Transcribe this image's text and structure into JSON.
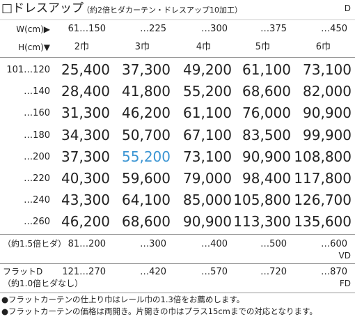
{
  "header": {
    "title": "□ドレスアップ",
    "subtitle": "（約2倍ヒダカーテン・ドレスアップ10加工）",
    "code": "D"
  },
  "table": {
    "width_label": "W(cm)▶",
    "widths": [
      "61…150",
      "…225",
      "…300",
      "…375",
      "…450"
    ],
    "height_label": "H(cm)▼",
    "panels": [
      "2巾",
      "3巾",
      "4巾",
      "5巾",
      "6巾"
    ],
    "rows": [
      {
        "height": "101…120",
        "prices": [
          "25,400",
          "37,300",
          "49,200",
          "61,100",
          "73,100"
        ]
      },
      {
        "height": "…140",
        "prices": [
          "28,400",
          "41,800",
          "55,200",
          "68,600",
          "82,000"
        ]
      },
      {
        "height": "…160",
        "prices": [
          "31,300",
          "46,200",
          "61,100",
          "76,000",
          "90,900"
        ]
      },
      {
        "height": "…180",
        "prices": [
          "34,300",
          "50,700",
          "67,100",
          "83,500",
          "99,900"
        ]
      },
      {
        "height": "…200",
        "prices": [
          "37,300",
          {
            "text": "55,200",
            "color": "#3b95d3"
          },
          "73,100",
          "90,900",
          "108,800"
        ]
      },
      {
        "height": "…220",
        "prices": [
          "40,300",
          "59,600",
          "79,000",
          "98,400",
          "117,800"
        ]
      },
      {
        "height": "…240",
        "prices": [
          "43,300",
          "64,100",
          "85,000",
          "105,800",
          "126,700"
        ]
      },
      {
        "height": "…260",
        "prices": [
          "46,200",
          "68,600",
          "90,900",
          "113,300",
          "135,600"
        ]
      }
    ],
    "variants": [
      {
        "label": [
          "（約1.5倍ヒダ）"
        ],
        "widths": [
          "81…200",
          "…300",
          "…400",
          "…500",
          "…600"
        ],
        "code": "VD"
      },
      {
        "label": [
          "フラットD",
          "（約1.0倍ヒダなし）"
        ],
        "widths": [
          "121…270",
          "…420",
          "…570",
          "…720",
          "…870"
        ],
        "code": "FD"
      }
    ]
  },
  "notes": [
    "●フラットカーテンの仕上り巾はレール巾の1.3倍をお薦めします。",
    "●フラットカーテンの価格は両開き。片開きの巾はプラス15cmまでの対応となります。"
  ]
}
